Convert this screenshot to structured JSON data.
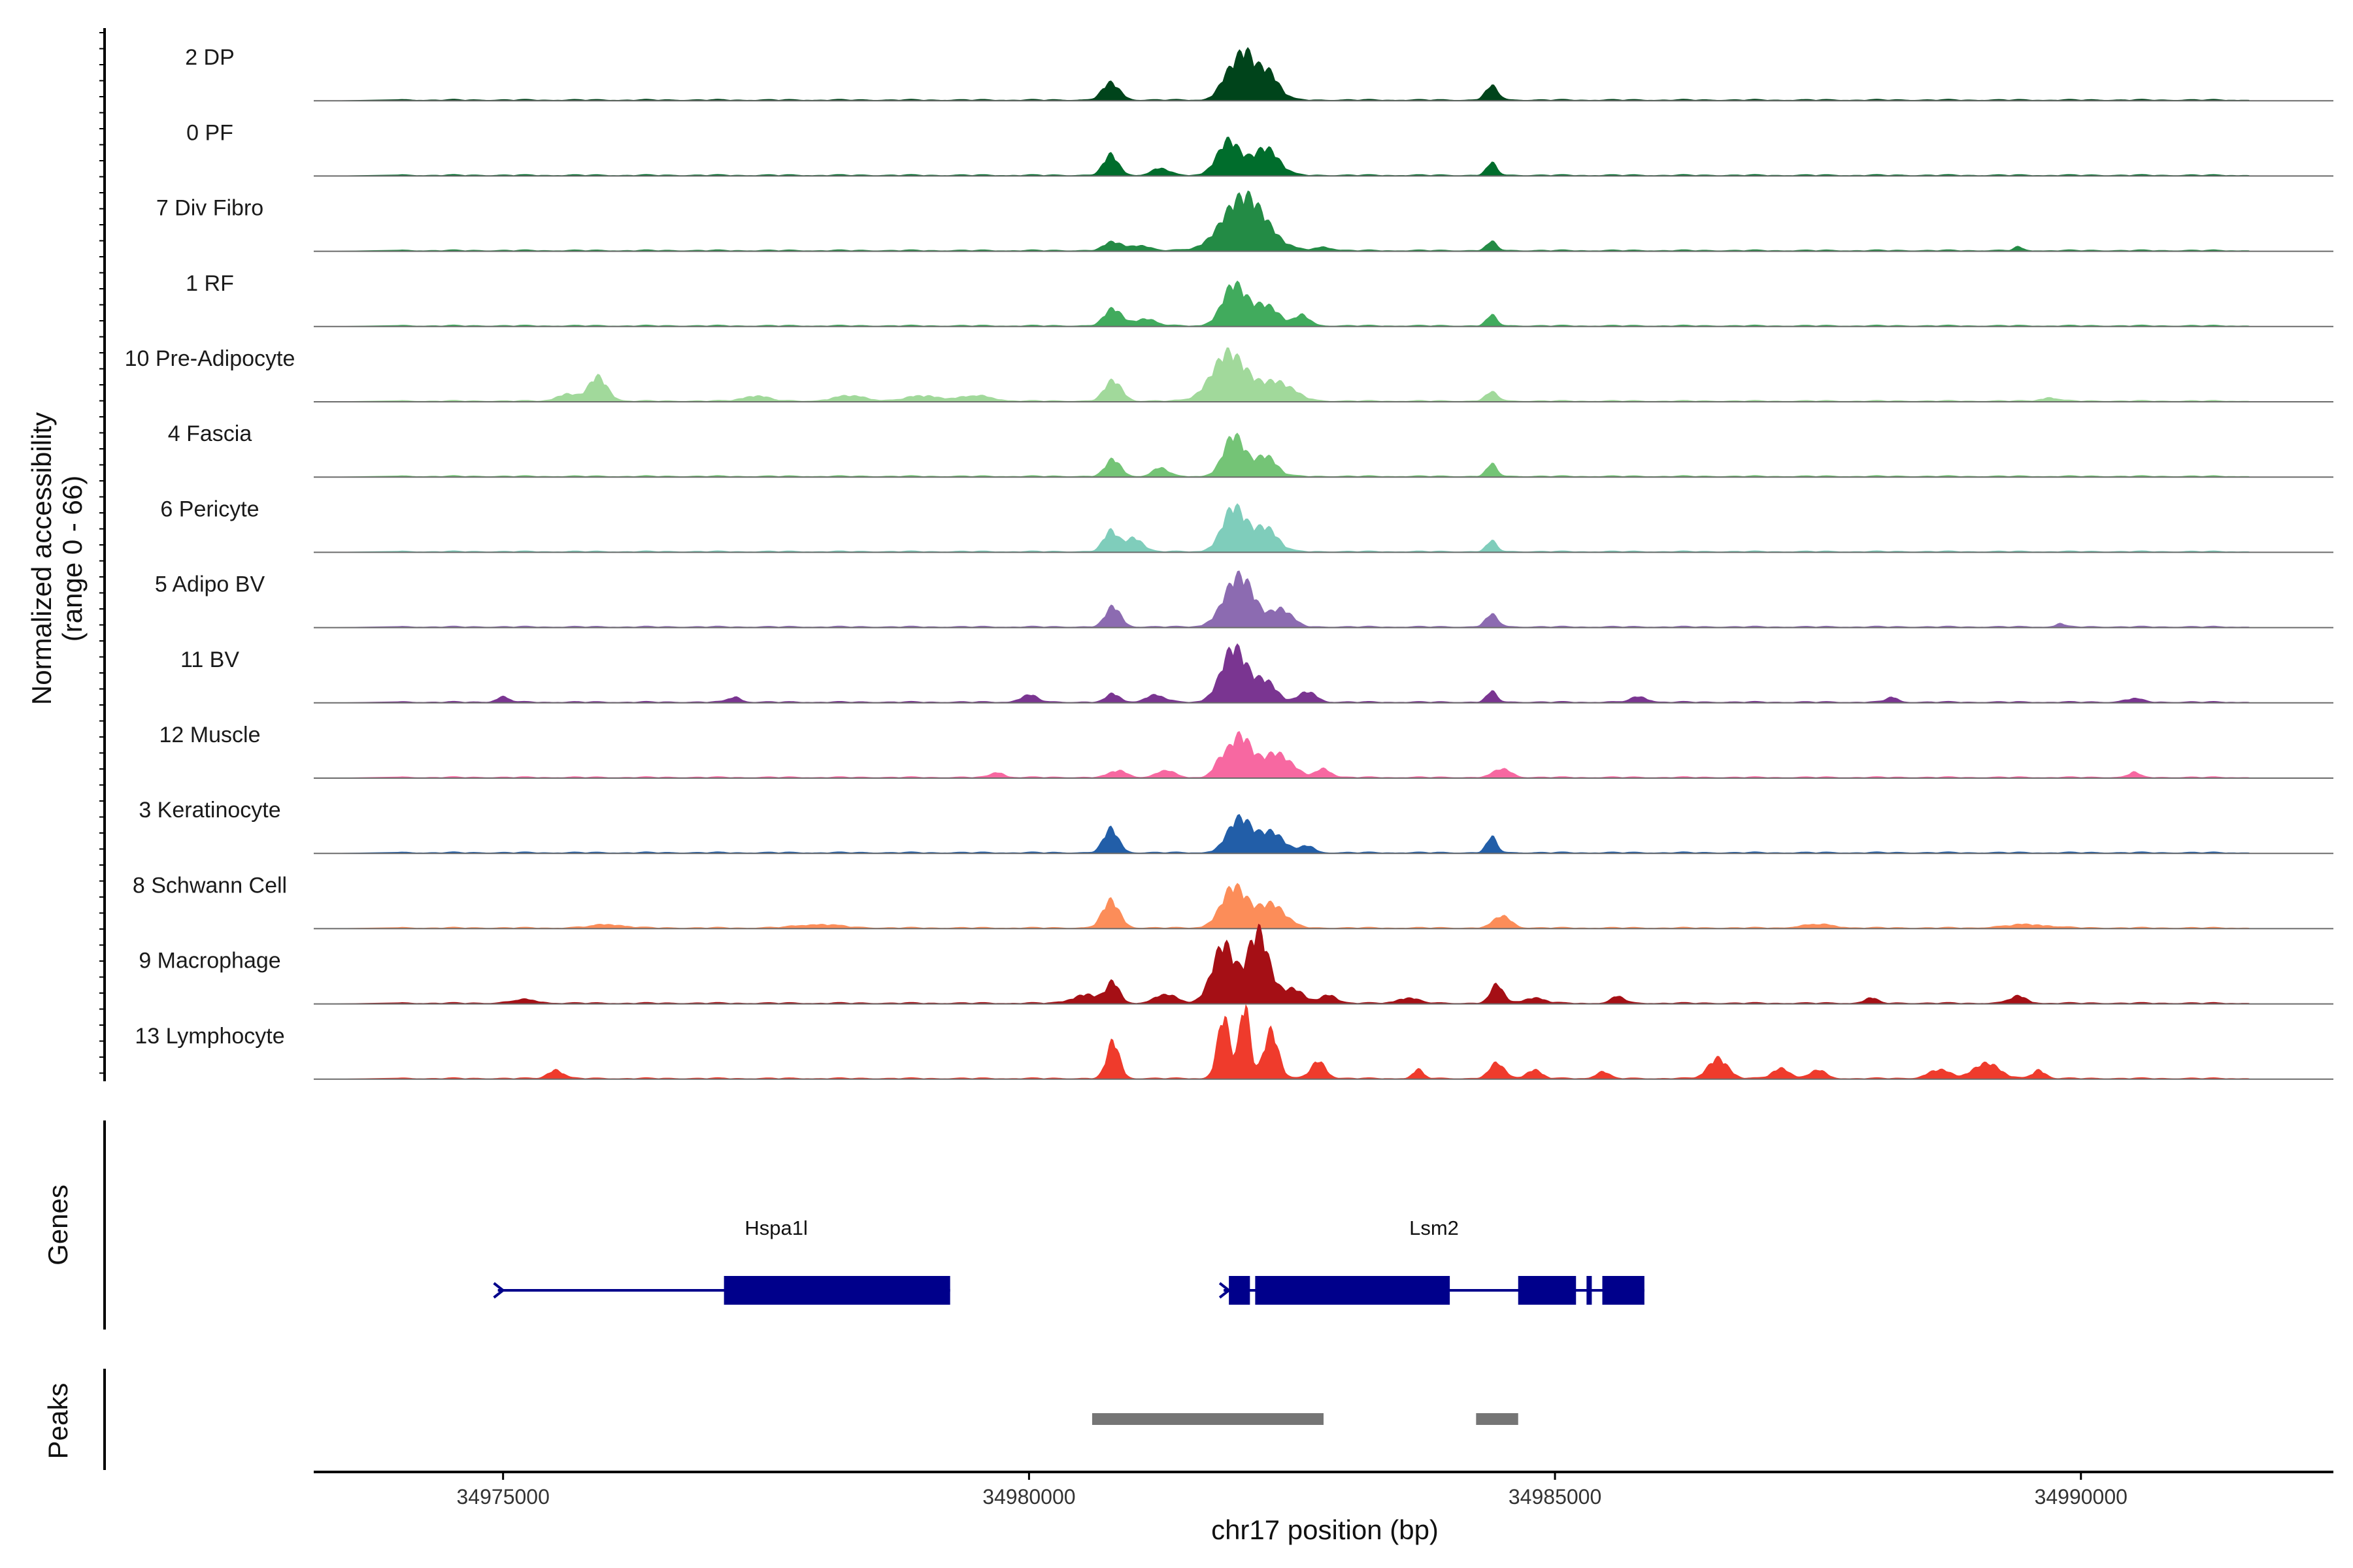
{
  "chart_data": {
    "type": "area",
    "title": "",
    "ylabel": "Normalized accessibility",
    "ylabel_range": "(range 0 - 66)",
    "ylim": [
      0,
      66
    ],
    "xlabel": "chr17 position (bp)",
    "xlim": [
      34973200,
      34992400
    ],
    "xticks": [
      34975000,
      34980000,
      34985000,
      34990000
    ],
    "xtick_labels": [
      "34975000",
      "34980000",
      "34985000",
      "34990000"
    ],
    "background_signal": 1,
    "tracks": [
      {
        "name": "2 DP",
        "color": "#00441b",
        "peaks": [
          [
            34980780,
            10,
            80
          ],
          [
            34981900,
            14,
            90
          ],
          [
            34982050,
            22,
            80
          ],
          [
            34982250,
            18,
            110
          ],
          [
            34984400,
            8,
            60
          ]
        ]
      },
      {
        "name": "0 PF",
        "color": "#006d2c",
        "peaks": [
          [
            34980780,
            12,
            70
          ],
          [
            34981250,
            4,
            80
          ],
          [
            34981900,
            20,
            110
          ],
          [
            34982250,
            16,
            120
          ],
          [
            34984400,
            7,
            50
          ]
        ]
      },
      {
        "name": "7 Div Fibro",
        "color": "#238b45",
        "peaks": [
          [
            34980800,
            5,
            80
          ],
          [
            34981050,
            3,
            90
          ],
          [
            34982050,
            32,
            200
          ],
          [
            34982800,
            2,
            80
          ],
          [
            34984400,
            5,
            50
          ],
          [
            34989400,
            2,
            40
          ]
        ]
      },
      {
        "name": "1 RF",
        "color": "#41ab5d",
        "peaks": [
          [
            34980800,
            10,
            80
          ],
          [
            34981100,
            4,
            100
          ],
          [
            34981950,
            24,
            110
          ],
          [
            34982250,
            12,
            120
          ],
          [
            34982600,
            6,
            70
          ],
          [
            34984400,
            6,
            50
          ]
        ]
      },
      {
        "name": "10 Pre-Adipocyte",
        "color": "#a1d99b",
        "peaks": [
          [
            34975900,
            14,
            90
          ],
          [
            34975600,
            4,
            90
          ],
          [
            34977400,
            3,
            120
          ],
          [
            34978300,
            3,
            150
          ],
          [
            34979000,
            3,
            160
          ],
          [
            34979500,
            3,
            150
          ],
          [
            34980800,
            12,
            80
          ],
          [
            34981900,
            28,
            160
          ],
          [
            34982350,
            11,
            160
          ],
          [
            34984400,
            5,
            60
          ],
          [
            34989700,
            2,
            80
          ]
        ]
      },
      {
        "name": "4 Fascia",
        "color": "#74c476",
        "peaks": [
          [
            34980800,
            10,
            70
          ],
          [
            34981250,
            5,
            70
          ],
          [
            34981950,
            24,
            100
          ],
          [
            34982250,
            12,
            100
          ],
          [
            34984400,
            7,
            50
          ]
        ]
      },
      {
        "name": "6 Pericyte",
        "color": "#7fcdbb",
        "peaks": [
          [
            34980780,
            12,
            70
          ],
          [
            34981000,
            8,
            80
          ],
          [
            34981950,
            26,
            110
          ],
          [
            34982250,
            14,
            110
          ],
          [
            34984400,
            6,
            50
          ]
        ]
      },
      {
        "name": "5 Adipo BV",
        "color": "#8c6bb1",
        "peaks": [
          [
            34980800,
            12,
            70
          ],
          [
            34982000,
            30,
            140
          ],
          [
            34982400,
            10,
            100
          ],
          [
            34984400,
            7,
            60
          ],
          [
            34989800,
            2,
            40
          ]
        ]
      },
      {
        "name": "11 BV",
        "color": "#7a3591",
        "peaks": [
          [
            34975000,
            3,
            60
          ],
          [
            34977200,
            3,
            60
          ],
          [
            34980000,
            4,
            80
          ],
          [
            34980800,
            5,
            60
          ],
          [
            34981200,
            4,
            90
          ],
          [
            34981950,
            32,
            120
          ],
          [
            34982250,
            12,
            100
          ],
          [
            34982650,
            6,
            80
          ],
          [
            34984400,
            6,
            50
          ],
          [
            34985800,
            3,
            80
          ],
          [
            34988200,
            3,
            50
          ],
          [
            34990500,
            2,
            80
          ]
        ]
      },
      {
        "name": "12 Muscle",
        "color": "#f768a1",
        "peaks": [
          [
            34979700,
            3,
            60
          ],
          [
            34980850,
            4,
            80
          ],
          [
            34981300,
            4,
            80
          ],
          [
            34981800,
            6,
            60
          ],
          [
            34982000,
            24,
            110
          ],
          [
            34982350,
            14,
            140
          ],
          [
            34982800,
            5,
            70
          ],
          [
            34984500,
            5,
            80
          ],
          [
            34990500,
            3,
            50
          ]
        ]
      },
      {
        "name": "3 Keratinocyte",
        "color": "#225ea8",
        "peaks": [
          [
            34980780,
            14,
            70
          ],
          [
            34982000,
            20,
            110
          ],
          [
            34982300,
            12,
            120
          ],
          [
            34982650,
            4,
            60
          ],
          [
            34984400,
            9,
            50
          ]
        ]
      },
      {
        "name": "8 Schwann Cell",
        "color": "#fc8d59",
        "peaks": [
          [
            34976000,
            2,
            150
          ],
          [
            34978000,
            2,
            200
          ],
          [
            34980780,
            16,
            80
          ],
          [
            34981950,
            24,
            120
          ],
          [
            34982300,
            14,
            130
          ],
          [
            34984500,
            7,
            80
          ],
          [
            34987500,
            2,
            150
          ],
          [
            34989500,
            2,
            200
          ]
        ]
      },
      {
        "name": "9 Macrophage",
        "color": "#a50f15",
        "peaks": [
          [
            34980550,
            5,
            130
          ],
          [
            34980800,
            12,
            60
          ],
          [
            34981300,
            5,
            100
          ],
          [
            34981850,
            34,
            110
          ],
          [
            34982180,
            42,
            100
          ],
          [
            34982500,
            8,
            110
          ],
          [
            34982850,
            5,
            70
          ],
          [
            34983600,
            3,
            100
          ],
          [
            34984450,
            11,
            60
          ],
          [
            34984800,
            3,
            100
          ],
          [
            34985600,
            4,
            60
          ],
          [
            34988000,
            3,
            60
          ],
          [
            34989400,
            4,
            80
          ],
          [
            34975200,
            2,
            120
          ]
        ]
      },
      {
        "name": "13 Lymphocyte",
        "color": "#ef3b2c",
        "peaks": [
          [
            34975500,
            5,
            70
          ],
          [
            34980800,
            22,
            60
          ],
          [
            34981850,
            36,
            60
          ],
          [
            34982050,
            44,
            50
          ],
          [
            34982300,
            28,
            70
          ],
          [
            34982750,
            10,
            70
          ],
          [
            34983700,
            5,
            50
          ],
          [
            34984450,
            9,
            70
          ],
          [
            34984800,
            5,
            70
          ],
          [
            34985450,
            4,
            60
          ],
          [
            34986550,
            12,
            90
          ],
          [
            34987150,
            6,
            80
          ],
          [
            34987500,
            5,
            70
          ],
          [
            34988650,
            5,
            100
          ],
          [
            34989100,
            9,
            120
          ],
          [
            34989600,
            5,
            60
          ]
        ]
      }
    ],
    "genes_track_label": "Genes",
    "genes": [
      {
        "name": "Hspa1l",
        "color": "#00008b",
        "start": 34974950,
        "end": 34979250,
        "exons": [
          [
            34977100,
            34979250
          ]
        ],
        "strand": "+"
      },
      {
        "name": "Lsm2",
        "color": "#00008b",
        "start": 34981850,
        "end": 34985850,
        "exons": [
          [
            34981900,
            34982100
          ],
          [
            34982150,
            34984000
          ],
          [
            34984650,
            34985200
          ],
          [
            34985300,
            34985350
          ],
          [
            34985450,
            34985850
          ]
        ],
        "strand": "+"
      }
    ],
    "peaks_track_label": "Peaks",
    "peak_regions": [
      [
        34980600,
        34982800
      ],
      [
        34984250,
        34984650
      ]
    ],
    "peak_color": "#757575"
  }
}
